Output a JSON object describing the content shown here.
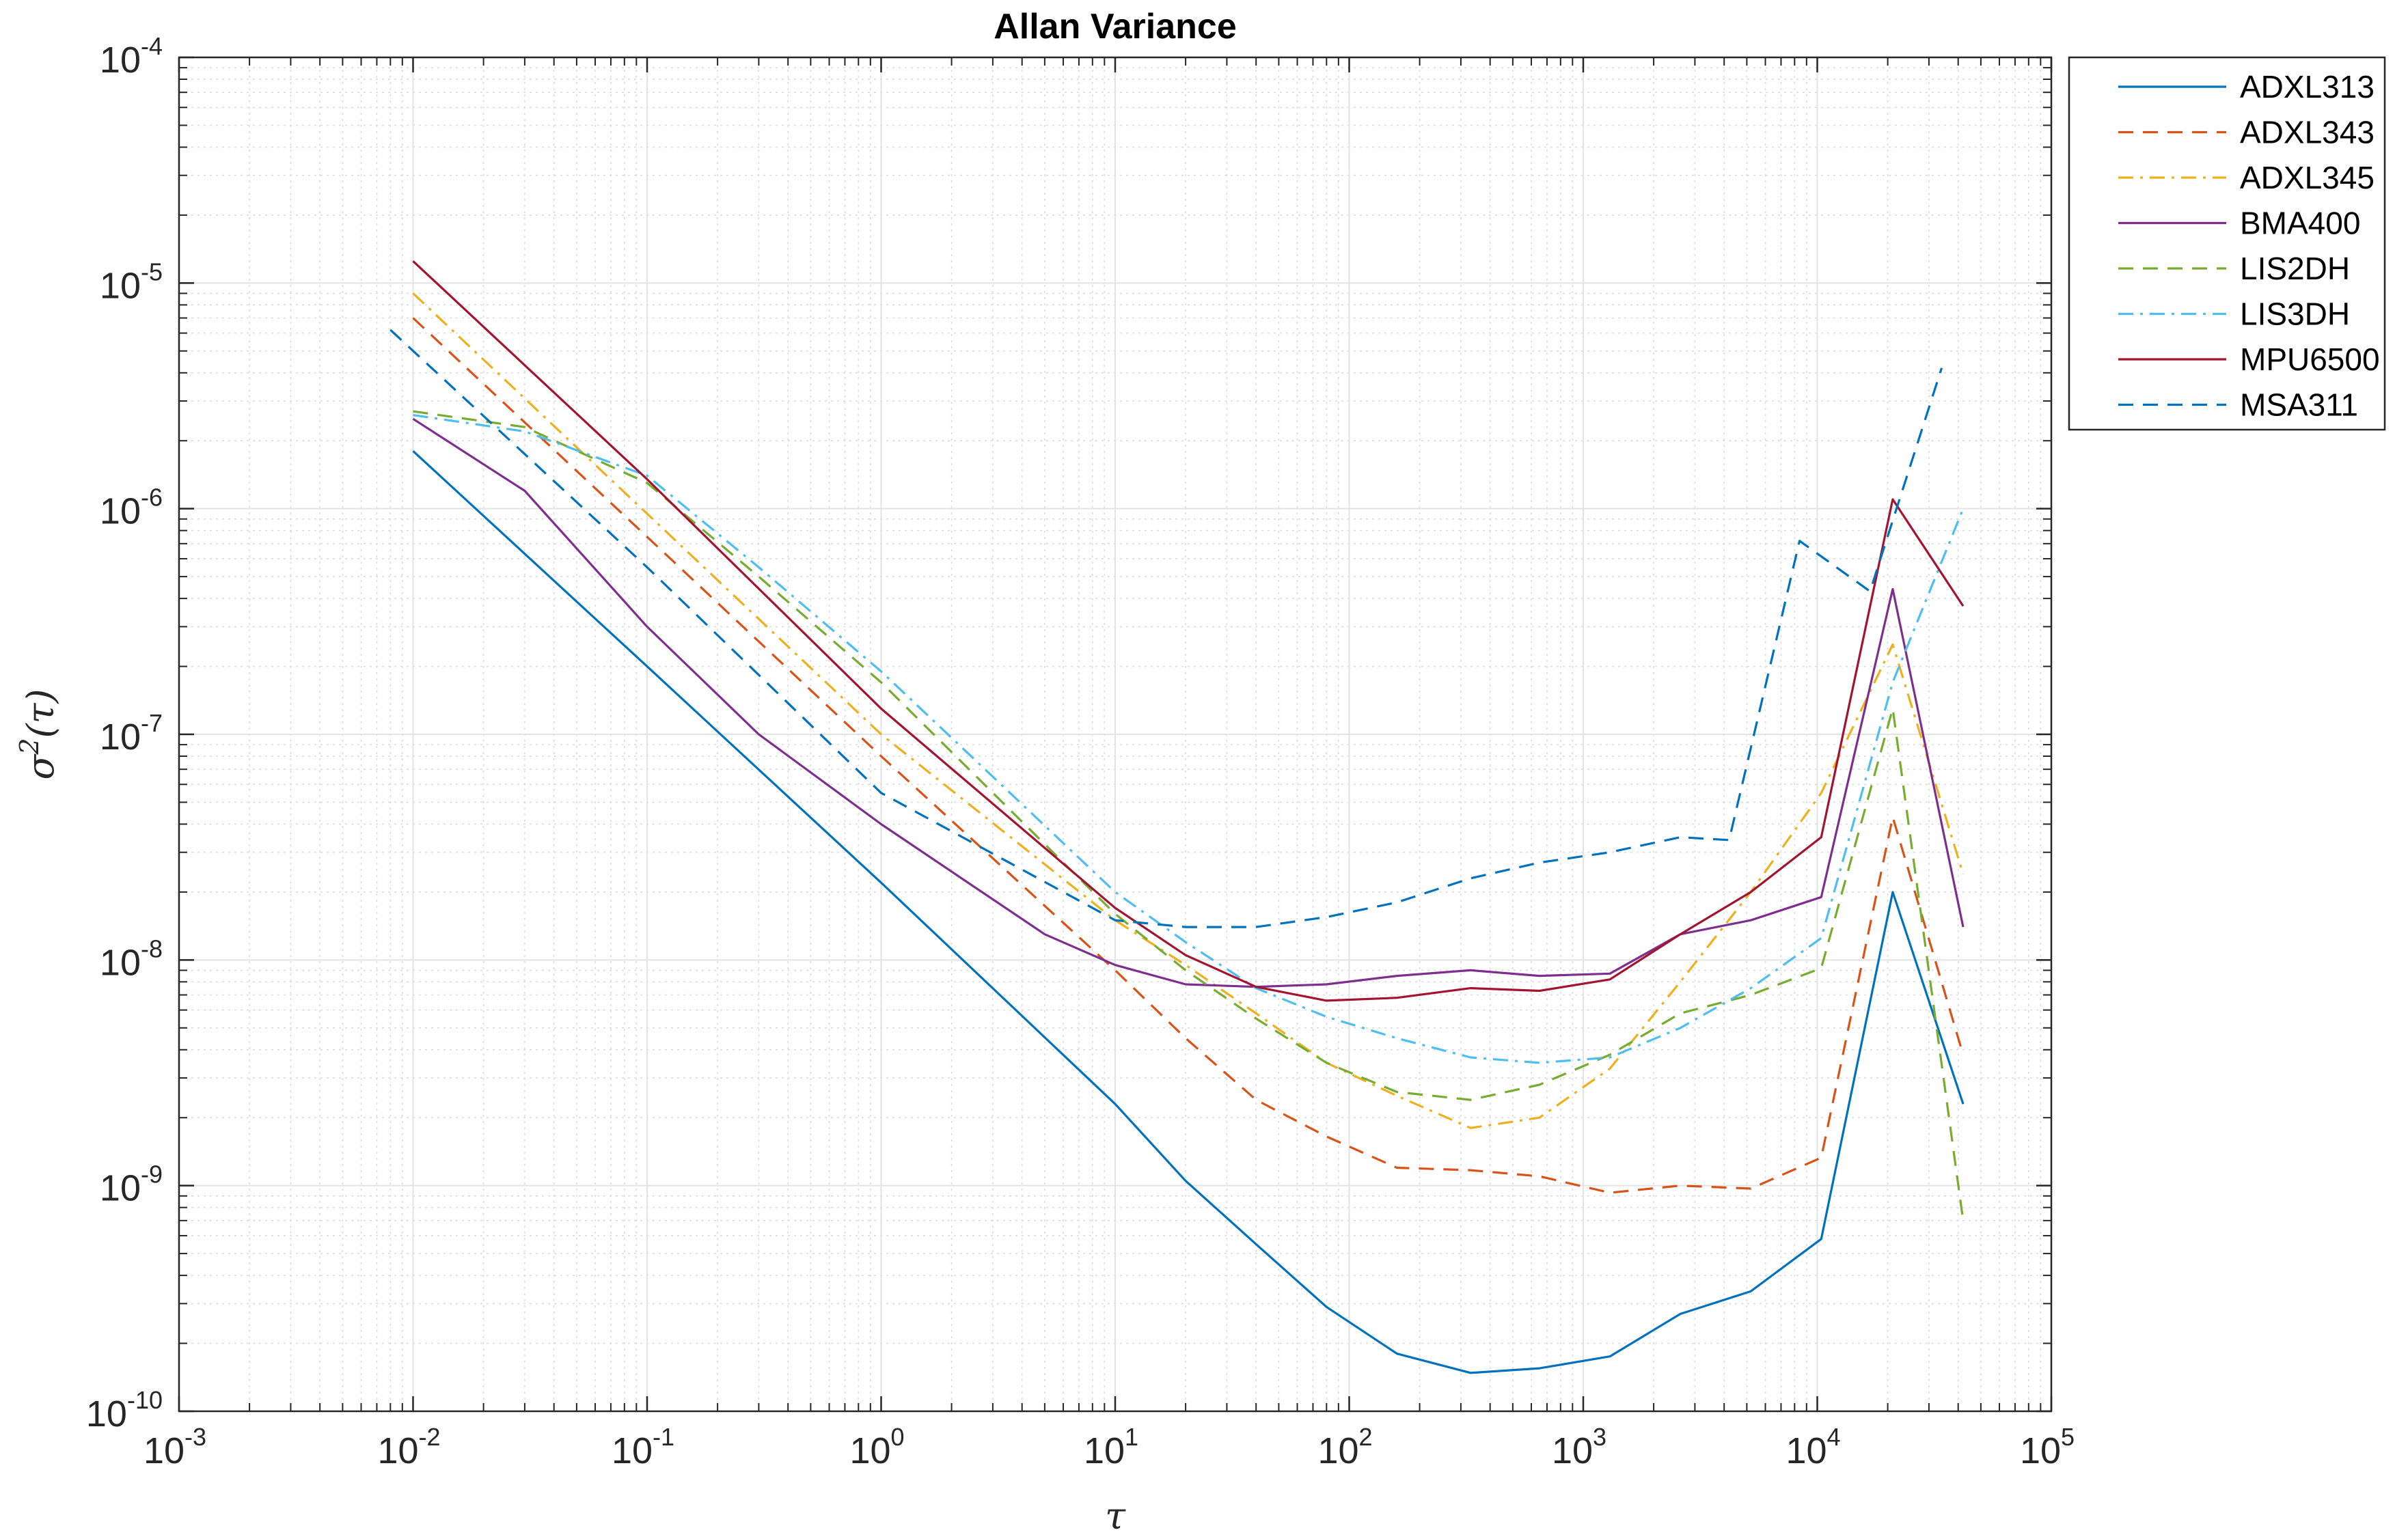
{
  "chart_data": {
    "type": "line",
    "title": "Allan Variance",
    "xlabel": "τ",
    "ylabel_base": "σ",
    "ylabel_sup": "2",
    "ylabel_arg": "(τ)",
    "xscale": "log",
    "yscale": "log",
    "xlim": [
      0.001,
      100000
    ],
    "ylim": [
      1e-10,
      0.0001
    ],
    "grid": true,
    "minor_grid": true,
    "legend_position": "outside-top-right",
    "x_ticks": [
      {
        "base": "10",
        "exp": "-3",
        "value": 0.001
      },
      {
        "base": "10",
        "exp": "-2",
        "value": 0.01
      },
      {
        "base": "10",
        "exp": "-1",
        "value": 0.1
      },
      {
        "base": "10",
        "exp": "0",
        "value": 1
      },
      {
        "base": "10",
        "exp": "1",
        "value": 10
      },
      {
        "base": "10",
        "exp": "2",
        "value": 100
      },
      {
        "base": "10",
        "exp": "3",
        "value": 1000
      },
      {
        "base": "10",
        "exp": "4",
        "value": 10000
      },
      {
        "base": "10",
        "exp": "5",
        "value": 100000
      }
    ],
    "y_ticks": [
      {
        "base": "10",
        "exp": "-10",
        "value": 1e-10
      },
      {
        "base": "10",
        "exp": "-9",
        "value": 1e-09
      },
      {
        "base": "10",
        "exp": "-8",
        "value": 1e-08
      },
      {
        "base": "10",
        "exp": "-7",
        "value": 1e-07
      },
      {
        "base": "10",
        "exp": "-6",
        "value": 1e-06
      },
      {
        "base": "10",
        "exp": "-5",
        "value": 1e-05
      },
      {
        "base": "10",
        "exp": "-4",
        "value": 0.0001
      }
    ],
    "series": [
      {
        "name": "ADXL313",
        "color": "#0072BD",
        "dash": "solid",
        "points": [
          [
            0.01,
            1.8e-06
          ],
          [
            0.1,
            2e-07
          ],
          [
            1,
            2.2e-08
          ],
          [
            10,
            2.3e-09
          ],
          [
            20,
            1.05e-09
          ],
          [
            40,
            5.5e-10
          ],
          [
            80,
            2.9e-10
          ],
          [
            160,
            1.8e-10
          ],
          [
            330,
            1.48e-10
          ],
          [
            650,
            1.55e-10
          ],
          [
            1300,
            1.75e-10
          ],
          [
            2600,
            2.7e-10
          ],
          [
            5200,
            3.4e-10
          ],
          [
            10400,
            5.8e-10
          ],
          [
            21000,
            2e-08
          ],
          [
            42000,
            2.3e-09
          ]
        ]
      },
      {
        "name": "ADXL343",
        "color": "#D95319",
        "dash": "dashed",
        "points": [
          [
            0.01,
            7e-06
          ],
          [
            0.1,
            7.5e-07
          ],
          [
            1,
            8e-08
          ],
          [
            10,
            9e-09
          ],
          [
            20,
            4.5e-09
          ],
          [
            40,
            2.4e-09
          ],
          [
            80,
            1.65e-09
          ],
          [
            160,
            1.2e-09
          ],
          [
            330,
            1.17e-09
          ],
          [
            650,
            1.1e-09
          ],
          [
            1300,
            9.3e-10
          ],
          [
            2600,
            1e-09
          ],
          [
            5200,
            9.7e-10
          ],
          [
            10400,
            1.33e-09
          ],
          [
            21000,
            4.3e-08
          ],
          [
            42000,
            3.8e-09
          ]
        ]
      },
      {
        "name": "ADXL345",
        "color": "#EDB120",
        "dash": "dashdot",
        "points": [
          [
            0.01,
            9e-06
          ],
          [
            0.1,
            9.5e-07
          ],
          [
            1,
            1e-07
          ],
          [
            10,
            1.5e-08
          ],
          [
            20,
            9.5e-09
          ],
          [
            40,
            5.8e-09
          ],
          [
            80,
            3.5e-09
          ],
          [
            160,
            2.5e-09
          ],
          [
            330,
            1.8e-09
          ],
          [
            650,
            2e-09
          ],
          [
            1300,
            3.3e-09
          ],
          [
            2600,
            8e-09
          ],
          [
            5200,
            2e-08
          ],
          [
            10400,
            5.5e-08
          ],
          [
            21000,
            2.5e-07
          ],
          [
            42000,
            2.4e-08
          ]
        ]
      },
      {
        "name": "BMA400",
        "color": "#7E2F8E",
        "dash": "solid",
        "points": [
          [
            0.01,
            2.5e-06
          ],
          [
            0.03,
            1.2e-06
          ],
          [
            0.1,
            3e-07
          ],
          [
            0.3,
            1e-07
          ],
          [
            1,
            4e-08
          ],
          [
            5,
            1.3e-08
          ],
          [
            10,
            9.5e-09
          ],
          [
            20,
            7.8e-09
          ],
          [
            40,
            7.6e-09
          ],
          [
            80,
            7.8e-09
          ],
          [
            160,
            8.5e-09
          ],
          [
            330,
            9e-09
          ],
          [
            650,
            8.5e-09
          ],
          [
            1300,
            8.7e-09
          ],
          [
            2600,
            1.3e-08
          ],
          [
            5200,
            1.5e-08
          ],
          [
            10400,
            1.9e-08
          ],
          [
            21000,
            4.4e-07
          ],
          [
            42000,
            1.4e-08
          ]
        ]
      },
      {
        "name": "LIS2DH",
        "color": "#77AC30",
        "dash": "dashed",
        "points": [
          [
            0.01,
            2.7e-06
          ],
          [
            0.03,
            2.3e-06
          ],
          [
            0.1,
            1.3e-06
          ],
          [
            0.3,
            5e-07
          ],
          [
            1,
            1.7e-07
          ],
          [
            10,
            1.6e-08
          ],
          [
            20,
            9e-09
          ],
          [
            40,
            5.5e-09
          ],
          [
            80,
            3.5e-09
          ],
          [
            160,
            2.6e-09
          ],
          [
            330,
            2.4e-09
          ],
          [
            650,
            2.8e-09
          ],
          [
            1300,
            3.8e-09
          ],
          [
            2600,
            5.8e-09
          ],
          [
            5200,
            7e-09
          ],
          [
            10400,
            9.2e-09
          ],
          [
            21000,
            1.3e-07
          ],
          [
            42000,
            7e-10
          ]
        ]
      },
      {
        "name": "LIS3DH",
        "color": "#4DBEEE",
        "dash": "dashdot",
        "points": [
          [
            0.01,
            2.6e-06
          ],
          [
            0.03,
            2.2e-06
          ],
          [
            0.1,
            1.4e-06
          ],
          [
            0.3,
            5.5e-07
          ],
          [
            1,
            1.9e-07
          ],
          [
            10,
            2e-08
          ],
          [
            20,
            1.2e-08
          ],
          [
            40,
            7.5e-09
          ],
          [
            80,
            5.6e-09
          ],
          [
            160,
            4.5e-09
          ],
          [
            330,
            3.7e-09
          ],
          [
            650,
            3.5e-09
          ],
          [
            1300,
            3.7e-09
          ],
          [
            2600,
            5e-09
          ],
          [
            5200,
            7.5e-09
          ],
          [
            10400,
            1.25e-08
          ],
          [
            21000,
            1.7e-07
          ],
          [
            42000,
            1e-06
          ]
        ]
      },
      {
        "name": "MPU6500",
        "color": "#A2142F",
        "dash": "solid",
        "points": [
          [
            0.01,
            1.25e-05
          ],
          [
            0.1,
            1.35e-06
          ],
          [
            1,
            1.3e-07
          ],
          [
            10,
            1.7e-08
          ],
          [
            20,
            1.05e-08
          ],
          [
            40,
            7.6e-09
          ],
          [
            80,
            6.6e-09
          ],
          [
            160,
            6.8e-09
          ],
          [
            330,
            7.5e-09
          ],
          [
            650,
            7.3e-09
          ],
          [
            1300,
            8.2e-09
          ],
          [
            2600,
            1.3e-08
          ],
          [
            5200,
            2e-08
          ],
          [
            10400,
            3.5e-08
          ],
          [
            21000,
            1.1e-06
          ],
          [
            42000,
            3.7e-07
          ]
        ]
      },
      {
        "name": "MSA311",
        "color": "#0072BD",
        "dash": "dashed",
        "points": [
          [
            0.008,
            6.2e-06
          ],
          [
            0.1,
            5.5e-07
          ],
          [
            1,
            5.5e-08
          ],
          [
            10,
            1.5e-08
          ],
          [
            20,
            1.4e-08
          ],
          [
            40,
            1.4e-08
          ],
          [
            80,
            1.55e-08
          ],
          [
            160,
            1.8e-08
          ],
          [
            330,
            2.3e-08
          ],
          [
            650,
            2.7e-08
          ],
          [
            1300,
            3e-08
          ],
          [
            2600,
            3.5e-08
          ],
          [
            4200,
            3.4e-08
          ],
          [
            8400,
            7.2e-07
          ],
          [
            16800,
            4.3e-07
          ],
          [
            34000,
            4.2e-06
          ]
        ]
      }
    ]
  }
}
